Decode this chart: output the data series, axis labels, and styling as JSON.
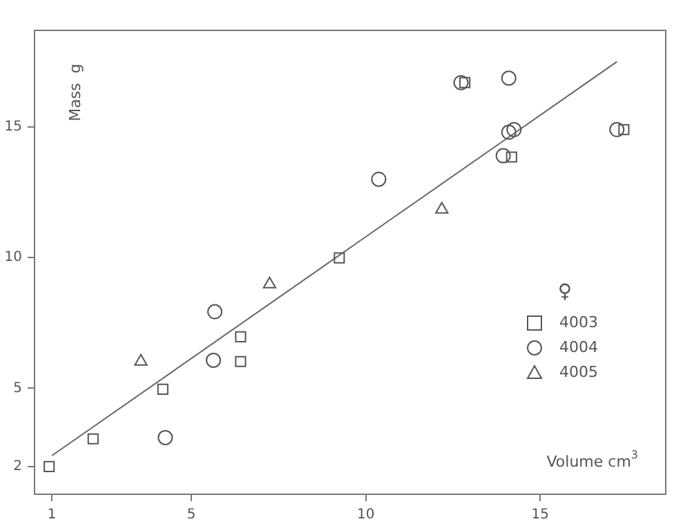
{
  "chart_data": {
    "type": "scatter",
    "xlabel": "Volume cm$^{3}$",
    "ylabel": "Mass  g",
    "legend_title": "♀",
    "legend": "right",
    "xlim": [
      0.5,
      18.6
    ],
    "ylim": [
      0.94,
      18.7
    ],
    "xticks": [
      1,
      5,
      10,
      15
    ],
    "yticks": [
      2,
      5,
      10,
      15
    ],
    "grid": false,
    "series": [
      {
        "name": "4003",
        "marker": "square",
        "color": "#555555",
        "x": [
          0.92,
          2.18,
          4.18,
          6.41,
          6.41,
          9.24,
          12.84,
          14.18,
          17.4
        ],
        "values": [
          2.0,
          3.06,
          4.96,
          6.97,
          6.02,
          9.99,
          16.7,
          13.85,
          14.9
        ]
      },
      {
        "name": "4004",
        "marker": "circle",
        "color": "#555555",
        "x": [
          4.25,
          5.67,
          5.63,
          10.37,
          12.73,
          14.1,
          14.1,
          14.25,
          13.94,
          17.2
        ],
        "values": [
          3.11,
          7.93,
          6.07,
          13.0,
          16.7,
          16.87,
          14.8,
          14.9,
          13.9,
          14.9
        ]
      },
      {
        "name": "4005",
        "marker": "triangle",
        "color": "#555555",
        "x": [
          3.55,
          7.24,
          12.18
        ],
        "values": [
          6.02,
          8.98,
          11.84
        ]
      },
      {
        "type": "line",
        "marker": "none",
        "color": "#666666",
        "x": [
          1,
          17.2
        ],
        "values": [
          2.42,
          17.5
        ]
      }
    ]
  }
}
